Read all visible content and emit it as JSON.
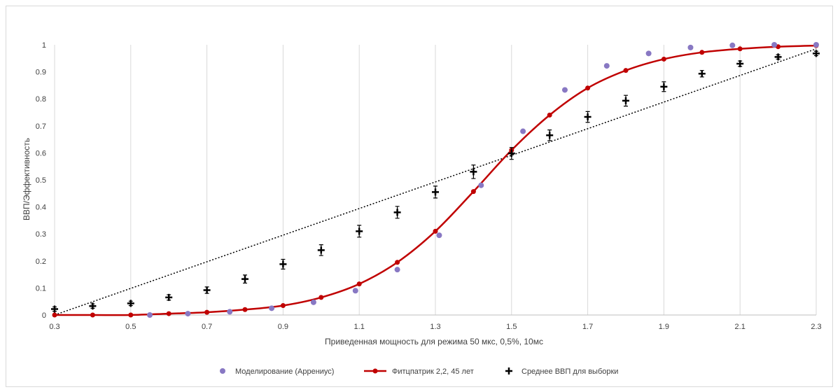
{
  "chart_data": {
    "type": "scatter",
    "xlabel": "Приведенная мощность для режима  50 мкс,  0,5%, 10мс",
    "ylabel": "ВВП/Эффективность",
    "xlim": [
      0.3,
      2.3
    ],
    "ylim": [
      0,
      1
    ],
    "x_ticks": [
      "0.3",
      "0.5",
      "0.7",
      "0.9",
      "1.1",
      "1.3",
      "1.5",
      "1.7",
      "1.9",
      "2.1",
      "2.3"
    ],
    "y_ticks": [
      "0",
      "0.1",
      "0.2",
      "0.3",
      "0.4",
      "0.5",
      "0.6",
      "0.7",
      "0.8",
      "0.9",
      "1"
    ],
    "grid": "vertical",
    "legend_position": "bottom",
    "series": [
      {
        "name": "Моделирование (Аррениус)",
        "kind": "markers",
        "color": "#8878c3",
        "x": [
          0.55,
          0.65,
          0.76,
          0.87,
          0.98,
          1.09,
          1.2,
          1.31,
          1.42,
          1.53,
          1.64,
          1.75,
          1.86,
          1.97,
          2.08,
          2.19,
          2.3
        ],
        "y": [
          0.0,
          0.005,
          0.012,
          0.025,
          0.047,
          0.09,
          0.168,
          0.295,
          0.48,
          0.68,
          0.833,
          0.922,
          0.968,
          0.99,
          0.998,
          1.0,
          1.0
        ]
      },
      {
        "name": "Фитцпатрик 2,2, 45 лет",
        "kind": "line+markers",
        "color": "#c00000",
        "x": [
          0.3,
          0.4,
          0.5,
          0.6,
          0.7,
          0.8,
          0.9,
          1.0,
          1.1,
          1.2,
          1.3,
          1.4,
          1.5,
          1.6,
          1.7,
          1.8,
          1.9,
          2.0,
          2.1,
          2.2,
          2.3
        ],
        "y": [
          0.0,
          0.0,
          0.0,
          0.005,
          0.01,
          0.02,
          0.035,
          0.065,
          0.115,
          0.195,
          0.31,
          0.457,
          0.61,
          0.74,
          0.84,
          0.905,
          0.947,
          0.972,
          0.985,
          0.993,
          0.997
        ]
      },
      {
        "name": "Среднее ВВП для выборки",
        "kind": "markers+errorbars",
        "color": "#000000",
        "x": [
          0.3,
          0.4,
          0.5,
          0.6,
          0.7,
          0.8,
          0.9,
          1.0,
          1.1,
          1.2,
          1.3,
          1.4,
          1.5,
          1.6,
          1.7,
          1.8,
          1.9,
          2.0,
          2.1,
          2.2,
          2.3
        ],
        "y": [
          0.022,
          0.033,
          0.043,
          0.065,
          0.092,
          0.133,
          0.188,
          0.24,
          0.31,
          0.38,
          0.455,
          0.53,
          0.598,
          0.665,
          0.733,
          0.793,
          0.845,
          0.893,
          0.93,
          0.955,
          0.968
        ],
        "err": [
          0.008,
          0.008,
          0.008,
          0.01,
          0.012,
          0.015,
          0.018,
          0.02,
          0.022,
          0.022,
          0.022,
          0.025,
          0.022,
          0.02,
          0.02,
          0.02,
          0.018,
          0.012,
          0.01,
          0.008,
          0.008
        ]
      },
      {
        "name": "trendline",
        "kind": "dotted-line",
        "color": "#000000",
        "x": [
          0.3,
          2.3
        ],
        "y": [
          0.0,
          0.985
        ]
      }
    ]
  }
}
